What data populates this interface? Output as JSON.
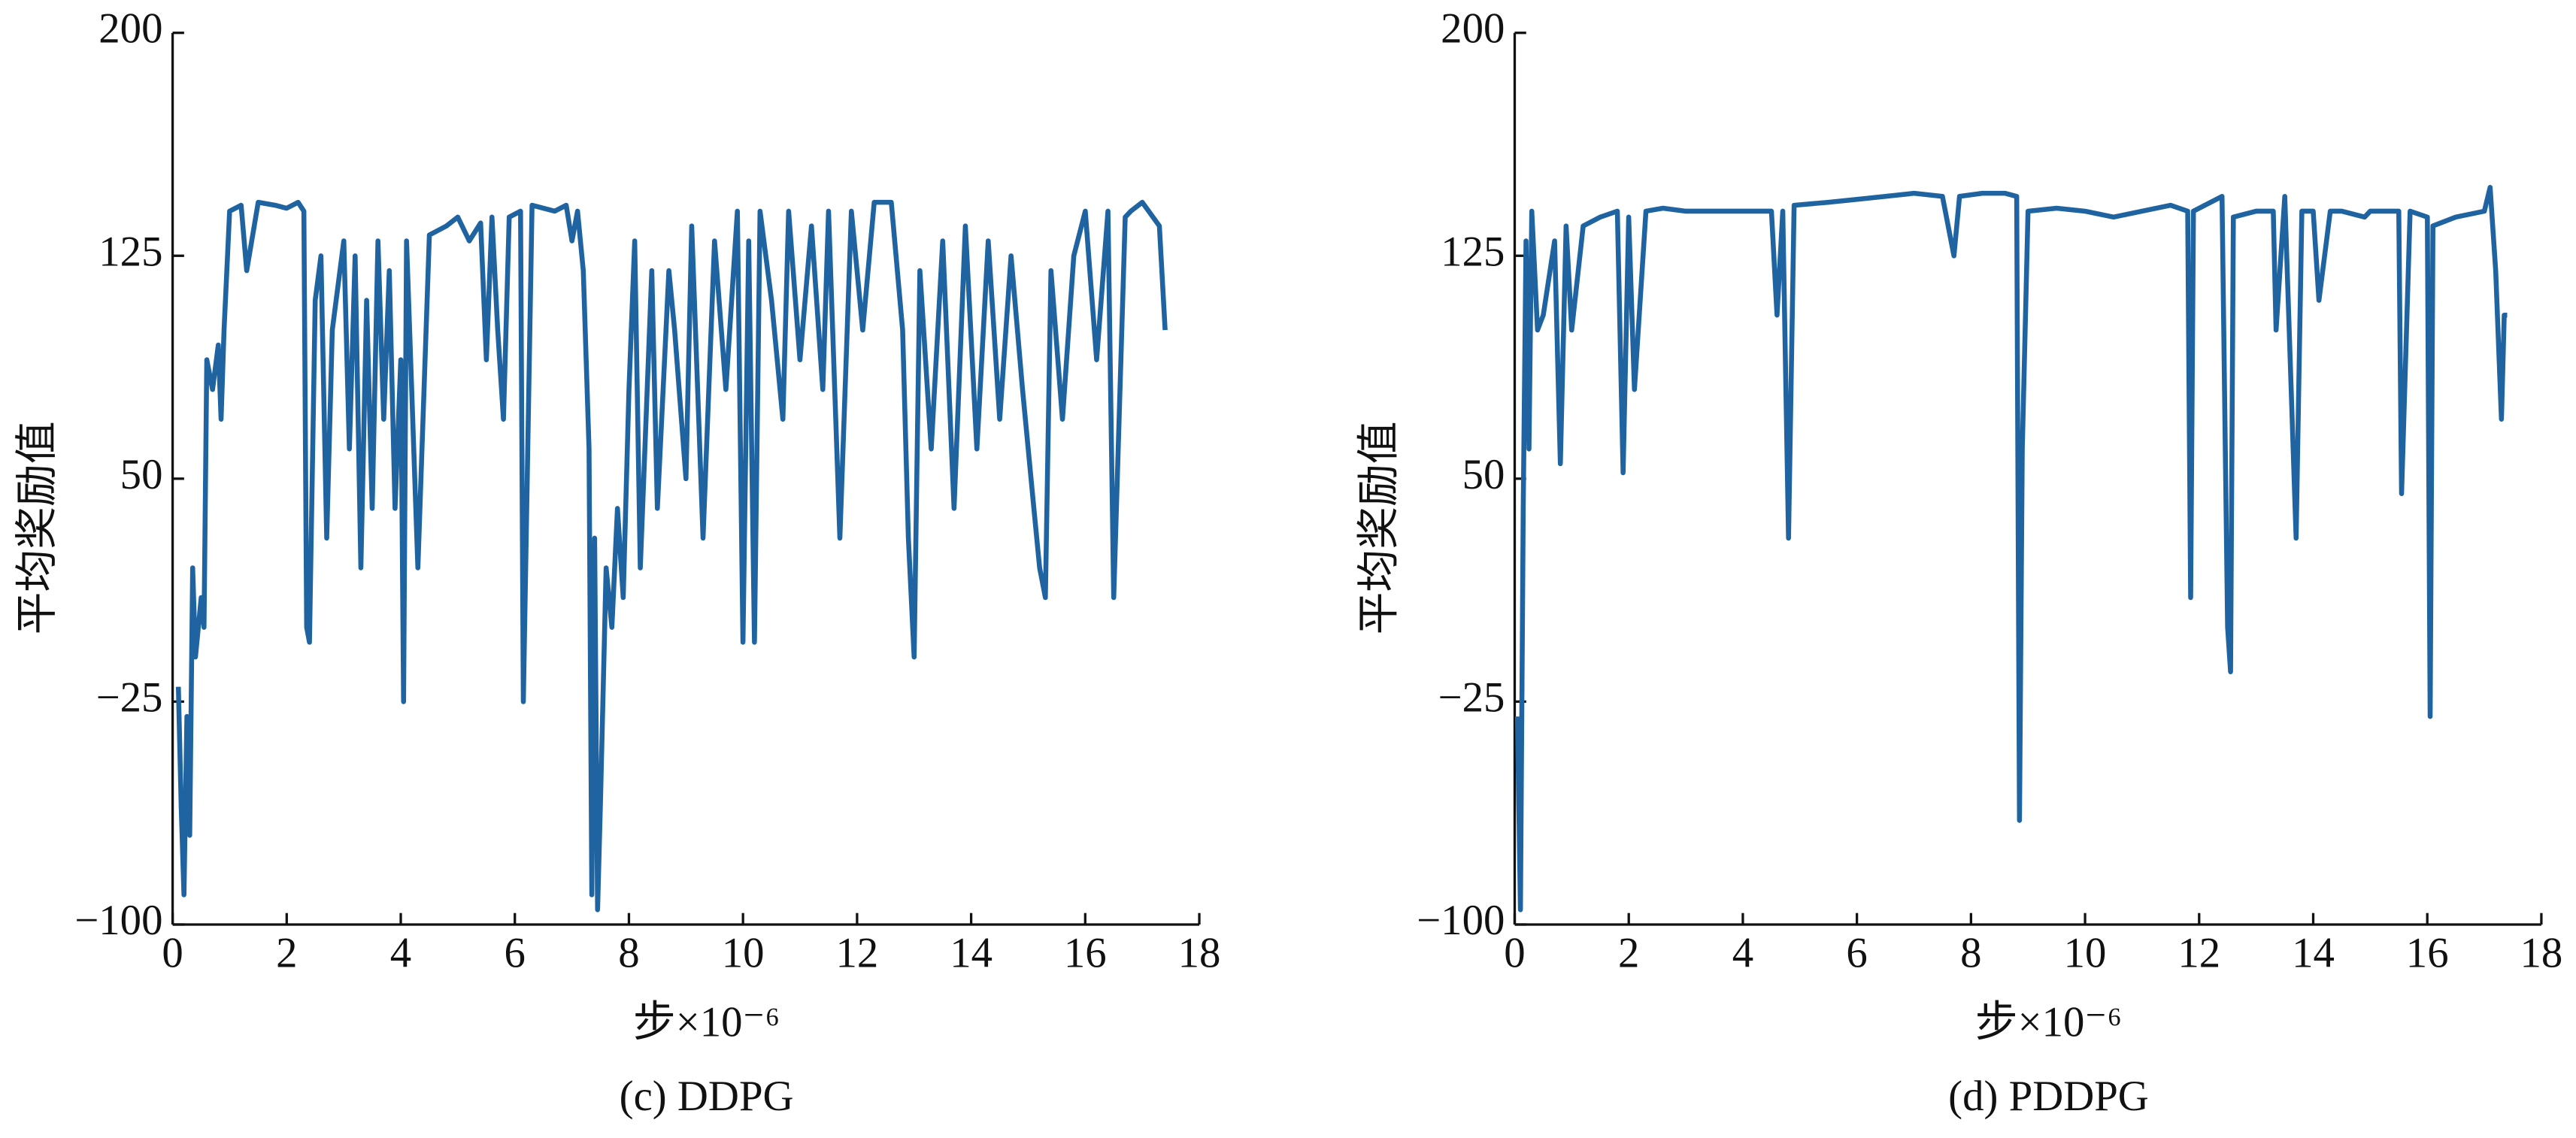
{
  "chart_data": [
    {
      "type": "line",
      "caption": "(c) DDPG",
      "xlabel": "步×10⁻⁶",
      "ylabel": "平均奖励值",
      "color": "#1f64a0",
      "xlim": [
        0,
        18
      ],
      "xticks": [
        0,
        2,
        4,
        6,
        8,
        10,
        12,
        14,
        16,
        18
      ],
      "ylim": [
        -100,
        200
      ],
      "yticks": [
        {
          "value": -100,
          "label": "−100"
        },
        {
          "value": -25,
          "label": "−25"
        },
        50,
        125,
        200
      ],
      "x": [
        0.1,
        0.15,
        0.2,
        0.25,
        0.3,
        0.35,
        0.4,
        0.5,
        0.55,
        0.6,
        0.7,
        0.8,
        0.85,
        0.9,
        1.0,
        1.2,
        1.3,
        1.5,
        1.8,
        2.0,
        2.2,
        2.3,
        2.35,
        2.4,
        2.5,
        2.6,
        2.7,
        2.8,
        3.0,
        3.1,
        3.2,
        3.3,
        3.4,
        3.5,
        3.6,
        3.7,
        3.8,
        3.9,
        4.0,
        4.05,
        4.1,
        4.3,
        4.5,
        4.8,
        5.0,
        5.2,
        5.4,
        5.5,
        5.6,
        5.7,
        5.8,
        5.9,
        6.1,
        6.15,
        6.3,
        6.7,
        6.9,
        7.0,
        7.1,
        7.2,
        7.3,
        7.35,
        7.4,
        7.45,
        7.5,
        7.6,
        7.7,
        7.8,
        7.9,
        8.0,
        8.1,
        8.2,
        8.4,
        8.5,
        8.7,
        8.8,
        9.0,
        9.1,
        9.3,
        9.5,
        9.7,
        9.9,
        10.0,
        10.1,
        10.2,
        10.3,
        10.5,
        10.7,
        10.8,
        11.0,
        11.2,
        11.4,
        11.5,
        11.7,
        11.9,
        12.1,
        12.3,
        12.6,
        12.8,
        12.9,
        13.0,
        13.1,
        13.3,
        13.5,
        13.7,
        13.9,
        14.1,
        14.3,
        14.5,
        14.7,
        14.9,
        15.1,
        15.2,
        15.3,
        15.4,
        15.6,
        15.8,
        16.0,
        16.2,
        16.4,
        16.5,
        16.7,
        16.8,
        17.0,
        17.3,
        17.4
      ],
      "values": [
        -20,
        -60,
        -90,
        -30,
        -70,
        20,
        -10,
        10,
        0,
        90,
        80,
        95,
        70,
        100,
        140,
        142,
        120,
        143,
        142,
        141,
        143,
        140,
        0,
        -5,
        110,
        125,
        30,
        100,
        130,
        60,
        125,
        20,
        110,
        40,
        130,
        70,
        120,
        40,
        90,
        -25,
        130,
        20,
        132,
        135,
        138,
        130,
        136,
        90,
        138,
        100,
        70,
        138,
        140,
        -25,
        142,
        140,
        142,
        130,
        140,
        120,
        60,
        -90,
        30,
        -95,
        -60,
        20,
        0,
        40,
        10,
        80,
        130,
        20,
        120,
        40,
        120,
        100,
        50,
        135,
        30,
        130,
        80,
        140,
        -5,
        130,
        -5,
        140,
        110,
        70,
        140,
        90,
        135,
        80,
        140,
        30,
        140,
        100,
        143,
        143,
        100,
        30,
        -10,
        120,
        60,
        130,
        40,
        135,
        60,
        130,
        70,
        125,
        80,
        40,
        20,
        10,
        120,
        70,
        125,
        140,
        90,
        140,
        10,
        138,
        140,
        143,
        135,
        100
      ]
    },
    {
      "type": "line",
      "caption": "(d) PDDPG",
      "xlabel": "步×10⁻⁶",
      "ylabel": "平均奖励值",
      "color": "#1f64a0",
      "xlim": [
        0,
        18
      ],
      "xticks": [
        0,
        2,
        4,
        6,
        8,
        10,
        12,
        14,
        16,
        18
      ],
      "ylim": [
        -100,
        200
      ],
      "yticks": [
        {
          "value": -100,
          "label": "−100"
        },
        {
          "value": -25,
          "label": "−25"
        },
        50,
        125,
        200
      ],
      "x": [
        0.05,
        0.1,
        0.15,
        0.2,
        0.25,
        0.3,
        0.4,
        0.5,
        0.7,
        0.8,
        0.9,
        1.0,
        1.2,
        1.5,
        1.8,
        1.9,
        2.0,
        2.1,
        2.3,
        2.6,
        3.0,
        3.5,
        4.0,
        4.5,
        4.6,
        4.7,
        4.8,
        4.9,
        5.5,
        6.0,
        6.5,
        7.0,
        7.5,
        7.7,
        7.8,
        8.2,
        8.6,
        8.8,
        8.85,
        8.9,
        9.0,
        9.5,
        10.0,
        10.5,
        11.0,
        11.5,
        11.8,
        11.85,
        11.9,
        12.4,
        12.5,
        12.55,
        12.6,
        13.0,
        13.3,
        13.35,
        13.5,
        13.7,
        13.8,
        14.0,
        14.1,
        14.3,
        14.5,
        14.9,
        15.0,
        15.5,
        15.55,
        15.7,
        16.0,
        16.05,
        16.1,
        16.5,
        17.0,
        17.1,
        17.2,
        17.3,
        17.35,
        17.4
      ],
      "values": [
        -30,
        -95,
        40,
        130,
        60,
        140,
        100,
        105,
        130,
        55,
        135,
        100,
        135,
        138,
        140,
        52,
        138,
        80,
        140,
        141,
        140,
        140,
        140,
        140,
        105,
        140,
        30,
        142,
        143,
        144,
        145,
        146,
        145,
        125,
        145,
        146,
        146,
        145,
        -65,
        60,
        140,
        141,
        140,
        138,
        140,
        142,
        140,
        10,
        140,
        145,
        0,
        -15,
        138,
        140,
        140,
        100,
        145,
        30,
        140,
        140,
        110,
        140,
        140,
        138,
        140,
        140,
        45,
        140,
        138,
        -30,
        135,
        138,
        140,
        148,
        120,
        70,
        105,
        105
      ]
    }
  ]
}
